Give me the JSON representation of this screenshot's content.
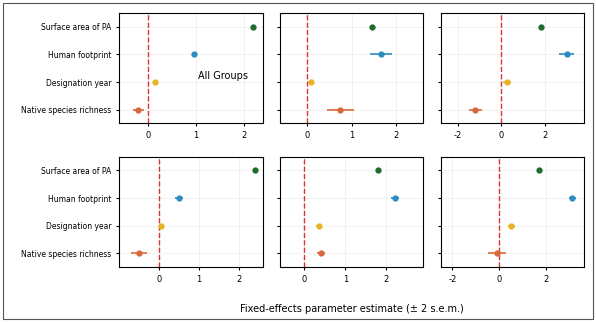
{
  "chart_data": [
    {
      "type": "scatter",
      "orientation": "horizontal",
      "annotation": "All Groups",
      "categories": [
        "Surface area of PA",
        "Human footprint",
        "Designation year",
        "Native species richness"
      ],
      "values": [
        2.2,
        0.97,
        0.15,
        -0.2
      ],
      "errors": [
        0.03,
        0.05,
        0.05,
        0.12
      ],
      "colors": [
        "#1e6b2a",
        "#2b8cc4",
        "#e6b422",
        "#d9683b"
      ],
      "xlim": [
        -0.6,
        2.4
      ],
      "xticks": [
        0,
        1,
        2
      ],
      "tick_labels": true
    },
    {
      "type": "scatter",
      "orientation": "horizontal",
      "categories": [
        "Surface area of PA",
        "Human footprint",
        "Designation year",
        "Native species richness"
      ],
      "values": [
        1.45,
        1.65,
        0.1,
        0.75
      ],
      "errors": [
        0.04,
        0.25,
        0.07,
        0.3
      ],
      "colors": [
        "#1e6b2a",
        "#2b8cc4",
        "#e6b422",
        "#d9683b"
      ],
      "xlim": [
        -0.6,
        2.6
      ],
      "xticks": [
        0,
        1,
        2
      ],
      "tick_labels": "x"
    },
    {
      "type": "scatter",
      "orientation": "horizontal",
      "categories": [
        "Surface area of PA",
        "Human footprint",
        "Designation year",
        "Native species richness"
      ],
      "values": [
        1.8,
        3.0,
        0.25,
        -1.2
      ],
      "errors": [
        0.05,
        0.35,
        0.2,
        0.3
      ],
      "colors": [
        "#1e6b2a",
        "#2b8cc4",
        "#e6b422",
        "#d9683b"
      ],
      "xlim": [
        -2.8,
        3.8
      ],
      "xticks": [
        -2,
        0,
        2
      ],
      "tick_labels": "x"
    },
    {
      "type": "scatter",
      "orientation": "horizontal",
      "categories": [
        "Surface area of PA",
        "Human footprint",
        "Designation year",
        "Native species richness"
      ],
      "values": [
        2.4,
        0.5,
        0.05,
        -0.5
      ],
      "errors": [
        0.03,
        0.1,
        0.05,
        0.2
      ],
      "colors": [
        "#1e6b2a",
        "#2b8cc4",
        "#e6b422",
        "#d9683b"
      ],
      "xlim": [
        -1.0,
        2.6
      ],
      "xticks": [
        0,
        1,
        2
      ],
      "tick_labels": true
    },
    {
      "type": "scatter",
      "orientation": "horizontal",
      "categories": [
        "Surface area of PA",
        "Human footprint",
        "Designation year",
        "Native species richness"
      ],
      "values": [
        1.8,
        2.2,
        0.35,
        0.4
      ],
      "errors": [
        0.04,
        0.1,
        0.08,
        0.1
      ],
      "colors": [
        "#1e6b2a",
        "#2b8cc4",
        "#e6b422",
        "#d9683b"
      ],
      "xlim": [
        -0.6,
        2.9
      ],
      "xticks": [
        0,
        1,
        2
      ],
      "tick_labels": "x"
    },
    {
      "type": "scatter",
      "orientation": "horizontal",
      "categories": [
        "Surface area of PA",
        "Human footprint",
        "Designation year",
        "Native species richness"
      ],
      "values": [
        1.7,
        3.1,
        0.5,
        -0.1
      ],
      "errors": [
        0.04,
        0.15,
        0.15,
        0.4
      ],
      "colors": [
        "#1e6b2a",
        "#2b8cc4",
        "#e6b422",
        "#d9683b"
      ],
      "xlim": [
        -2.5,
        3.6
      ],
      "xticks": [
        -2,
        0,
        2
      ],
      "tick_labels": "x"
    }
  ],
  "xlabel": "Fixed-effects parameter estimate (± 2 s.e.m.)"
}
